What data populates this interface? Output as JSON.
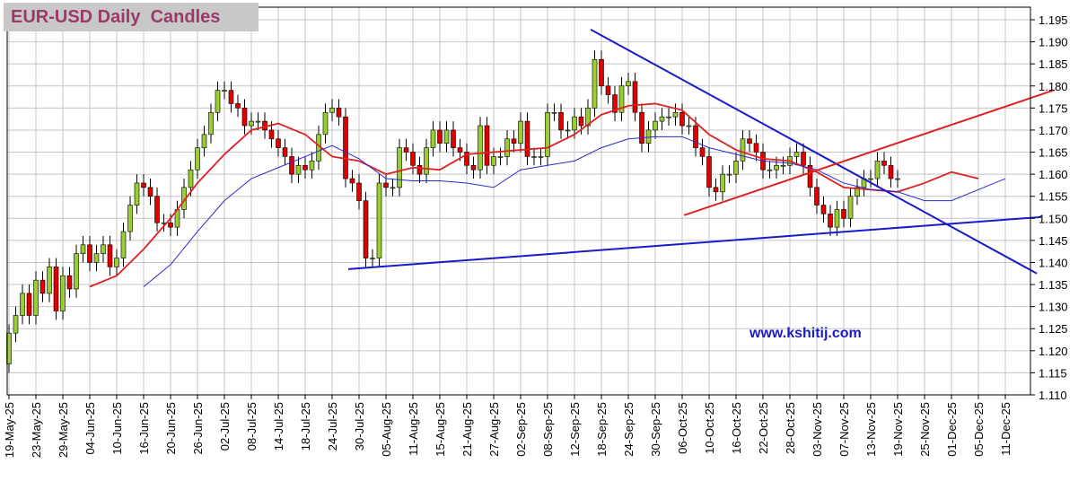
{
  "chart_data": {
    "type": "candlestick",
    "title": "EUR-USD Daily  Candles",
    "annotation": "www.kshitij.com",
    "categories": [
      "19-May-25",
      "23-May-25",
      "29-May-25",
      "04-Jun-25",
      "10-Jun-25",
      "16-Jun-25",
      "20-Jun-25",
      "26-Jun-25",
      "02-Jul-25",
      "08-Jul-25",
      "14-Jul-25",
      "18-Jul-25",
      "24-Jul-25",
      "30-Jul-25",
      "05-Aug-25",
      "11-Aug-25",
      "15-Aug-25",
      "21-Aug-25",
      "27-Aug-25",
      "02-Sep-25",
      "08-Sep-25",
      "12-Sep-25",
      "18-Sep-25",
      "24-Sep-25",
      "30-Sep-25",
      "06-Oct-25",
      "10-Oct-25",
      "16-Oct-25",
      "22-Oct-25",
      "28-Oct-25",
      "03-Nov-25",
      "07-Nov-25",
      "13-Nov-25",
      "19-Nov-25",
      "25-Nov-25",
      "01-Dec-25",
      "05-Dec-25",
      "11-Dec-25"
    ],
    "ylim": [
      1.11,
      1.195
    ],
    "yticks": [
      {
        "value": 1.11,
        "label": "1.110"
      },
      1.115,
      {
        "value": 1.12,
        "label": "1.120"
      },
      1.125,
      {
        "value": 1.13,
        "label": "1.130"
      },
      1.135,
      {
        "value": 1.14,
        "label": "1.140"
      },
      1.145,
      {
        "value": 1.15,
        "label": "1.150"
      },
      1.155,
      {
        "value": 1.16,
        "label": "1.160"
      },
      1.165,
      {
        "value": 1.17,
        "label": "1.170"
      },
      1.175,
      {
        "value": 1.18,
        "label": "1.180"
      },
      1.185,
      {
        "value": 1.19,
        "label": "1.190"
      },
      1.195
    ],
    "grid": true,
    "up_color": "#9acd32",
    "down_color": "#e00000",
    "candles": {
      "open": [
        1.117,
        1.124,
        1.128,
        1.133,
        1.128,
        1.136,
        1.133,
        1.139,
        1.129,
        1.137,
        1.134,
        1.142,
        1.144,
        1.14,
        1.142,
        1.144,
        1.139,
        1.141,
        1.147,
        1.153,
        1.158,
        1.157,
        1.155,
        1.149,
        1.149,
        1.148,
        1.152,
        1.157,
        1.161,
        1.166,
        1.169,
        1.174,
        1.179,
        1.179,
        1.176,
        1.175,
        1.171,
        1.172,
        1.172,
        1.17,
        1.168,
        1.166,
        1.164,
        1.16,
        1.162,
        1.161,
        1.163,
        1.169,
        1.174,
        1.175,
        1.173,
        1.159,
        1.158,
        1.154,
        1.141,
        1.141,
        1.158,
        1.157,
        1.157,
        1.166,
        1.165,
        1.162,
        1.16,
        1.166,
        1.17,
        1.167,
        1.17,
        1.166,
        1.165,
        1.162,
        1.161,
        1.171,
        1.162,
        1.164,
        1.164,
        1.168,
        1.167,
        1.172,
        1.164,
        1.164,
        1.164,
        1.174,
        1.174,
        1.17,
        1.17,
        1.173,
        1.171,
        1.175,
        1.186,
        1.18,
        1.178,
        1.174,
        1.18,
        1.181,
        1.174,
        1.167,
        1.17,
        1.172,
        1.173,
        1.173,
        1.174,
        1.171,
        1.171,
        1.166,
        1.164,
        1.157,
        1.156,
        1.16,
        1.16,
        1.163,
        1.168,
        1.167,
        1.165,
        1.161,
        1.161,
        1.162,
        1.162,
        1.164,
        1.165,
        1.162,
        1.157,
        1.153,
        1.151,
        1.148,
        1.152,
        1.15,
        1.155,
        1.157,
        1.159,
        1.159,
        1.163,
        1.162,
        1.159
      ],
      "high": [
        1.126,
        1.13,
        1.135,
        1.135,
        1.138,
        1.138,
        1.141,
        1.141,
        1.139,
        1.139,
        1.144,
        1.146,
        1.146,
        1.144,
        1.146,
        1.146,
        1.143,
        1.149,
        1.155,
        1.16,
        1.16,
        1.159,
        1.157,
        1.151,
        1.151,
        1.154,
        1.159,
        1.163,
        1.168,
        1.171,
        1.176,
        1.181,
        1.181,
        1.181,
        1.178,
        1.177,
        1.174,
        1.174,
        1.174,
        1.172,
        1.17,
        1.168,
        1.166,
        1.164,
        1.164,
        1.165,
        1.171,
        1.176,
        1.177,
        1.177,
        1.175,
        1.161,
        1.16,
        1.156,
        1.143,
        1.16,
        1.16,
        1.159,
        1.168,
        1.168,
        1.167,
        1.164,
        1.168,
        1.172,
        1.172,
        1.172,
        1.172,
        1.168,
        1.167,
        1.164,
        1.173,
        1.173,
        1.166,
        1.166,
        1.17,
        1.17,
        1.174,
        1.174,
        1.166,
        1.166,
        1.176,
        1.176,
        1.176,
        1.172,
        1.175,
        1.175,
        1.177,
        1.188,
        1.188,
        1.182,
        1.18,
        1.182,
        1.183,
        1.183,
        1.176,
        1.172,
        1.174,
        1.175,
        1.175,
        1.176,
        1.176,
        1.173,
        1.173,
        1.168,
        1.166,
        1.159,
        1.162,
        1.162,
        1.165,
        1.17,
        1.17,
        1.169,
        1.167,
        1.163,
        1.164,
        1.164,
        1.166,
        1.167,
        1.167,
        1.164,
        1.159,
        1.155,
        1.153,
        1.154,
        1.154,
        1.157,
        1.159,
        1.161,
        1.161,
        1.165,
        1.165,
        1.164,
        1.161
      ],
      "low": [
        1.115,
        1.122,
        1.126,
        1.126,
        1.126,
        1.131,
        1.131,
        1.127,
        1.127,
        1.132,
        1.132,
        1.14,
        1.138,
        1.138,
        1.14,
        1.137,
        1.137,
        1.139,
        1.145,
        1.151,
        1.155,
        1.153,
        1.147,
        1.147,
        1.146,
        1.146,
        1.15,
        1.155,
        1.159,
        1.164,
        1.167,
        1.172,
        1.177,
        1.174,
        1.173,
        1.169,
        1.169,
        1.17,
        1.168,
        1.166,
        1.164,
        1.162,
        1.158,
        1.158,
        1.159,
        1.159,
        1.161,
        1.167,
        1.172,
        1.171,
        1.157,
        1.156,
        1.152,
        1.139,
        1.139,
        1.139,
        1.155,
        1.155,
        1.155,
        1.163,
        1.16,
        1.158,
        1.158,
        1.164,
        1.165,
        1.165,
        1.164,
        1.163,
        1.16,
        1.159,
        1.159,
        1.16,
        1.16,
        1.162,
        1.162,
        1.165,
        1.165,
        1.162,
        1.162,
        1.162,
        1.162,
        1.172,
        1.168,
        1.168,
        1.168,
        1.169,
        1.169,
        1.173,
        1.178,
        1.176,
        1.172,
        1.172,
        1.178,
        1.172,
        1.165,
        1.165,
        1.168,
        1.17,
        1.171,
        1.171,
        1.169,
        1.169,
        1.164,
        1.162,
        1.155,
        1.154,
        1.154,
        1.158,
        1.158,
        1.161,
        1.165,
        1.163,
        1.159,
        1.159,
        1.159,
        1.16,
        1.16,
        1.162,
        1.16,
        1.155,
        1.151,
        1.149,
        1.146,
        1.146,
        1.148,
        1.148,
        1.153,
        1.155,
        1.157,
        1.157,
        1.16,
        1.157,
        1.157
      ],
      "close": [
        1.124,
        1.128,
        1.133,
        1.128,
        1.136,
        1.133,
        1.139,
        1.129,
        1.137,
        1.134,
        1.142,
        1.144,
        1.14,
        1.142,
        1.144,
        1.139,
        1.141,
        1.147,
        1.153,
        1.158,
        1.157,
        1.155,
        1.149,
        1.149,
        1.148,
        1.152,
        1.157,
        1.161,
        1.166,
        1.169,
        1.174,
        1.179,
        1.179,
        1.176,
        1.175,
        1.171,
        1.172,
        1.172,
        1.17,
        1.168,
        1.166,
        1.164,
        1.16,
        1.162,
        1.161,
        1.163,
        1.169,
        1.174,
        1.175,
        1.173,
        1.159,
        1.158,
        1.154,
        1.141,
        1.141,
        1.158,
        1.157,
        1.157,
        1.166,
        1.165,
        1.162,
        1.16,
        1.166,
        1.17,
        1.167,
        1.17,
        1.166,
        1.165,
        1.162,
        1.161,
        1.171,
        1.162,
        1.164,
        1.164,
        1.168,
        1.167,
        1.172,
        1.164,
        1.164,
        1.164,
        1.174,
        1.174,
        1.17,
        1.17,
        1.173,
        1.171,
        1.175,
        1.186,
        1.18,
        1.178,
        1.174,
        1.18,
        1.181,
        1.174,
        1.167,
        1.17,
        1.172,
        1.173,
        1.173,
        1.174,
        1.171,
        1.171,
        1.166,
        1.164,
        1.157,
        1.156,
        1.16,
        1.16,
        1.163,
        1.168,
        1.167,
        1.165,
        1.161,
        1.161,
        1.162,
        1.162,
        1.164,
        1.165,
        1.162,
        1.157,
        1.153,
        1.151,
        1.148,
        1.152,
        1.15,
        1.155,
        1.157,
        1.159,
        1.159,
        1.163,
        1.162,
        1.159,
        1.159
      ]
    },
    "series": [
      {
        "color": "#e02020",
        "values": [
          null,
          null,
          null,
          1.1345,
          1.137,
          1.143,
          1.15,
          1.158,
          1.1645,
          1.17,
          1.1715,
          1.169,
          1.164,
          1.163,
          1.16,
          1.1615,
          1.161,
          1.1645,
          1.165,
          1.1655,
          1.166,
          1.169,
          1.1735,
          1.1755,
          1.176,
          1.1745,
          1.169,
          1.1655,
          1.1635,
          1.163,
          1.1605,
          1.157,
          1.1565,
          1.156,
          1.158,
          1.1605,
          1.159,
          null
        ]
      },
      {
        "color": "#2a2ad0",
        "values": [
          null,
          null,
          null,
          null,
          null,
          1.1345,
          1.1395,
          1.147,
          1.154,
          1.159,
          1.1615,
          1.164,
          1.1665,
          1.1635,
          1.159,
          1.1585,
          1.1585,
          1.158,
          1.157,
          1.161,
          1.162,
          1.163,
          1.166,
          1.168,
          1.1685,
          1.1685,
          1.166,
          1.1645,
          1.163,
          1.1625,
          1.161,
          1.158,
          1.1565,
          1.156,
          1.154,
          1.154,
          1.1565,
          1.159
        ]
      }
    ],
    "trendlines": [
      {
        "color": "#1a1ac8",
        "x": [
          21.6,
          38.17
        ],
        "y": [
          1.1928,
          1.1375
        ]
      },
      {
        "color": "#e02020",
        "x": [
          25.07,
          38.83
        ],
        "y": [
          1.1507,
          1.1791
        ]
      },
      {
        "color": "#1a1ac8",
        "x": [
          12.6,
          38.33
        ],
        "y": [
          1.1385,
          1.1503
        ]
      }
    ]
  }
}
